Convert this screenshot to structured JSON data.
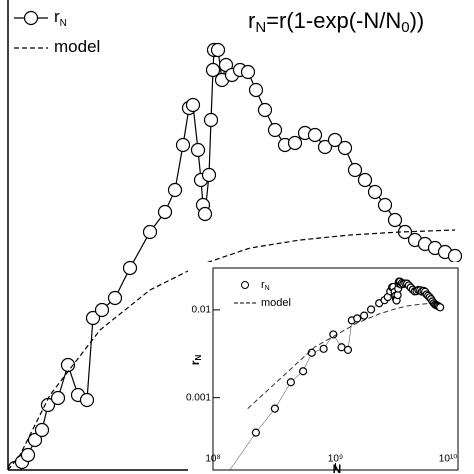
{
  "chart_data": {
    "type": "line",
    "title_parts": [
      {
        "text": "r"
      },
      {
        "text": "N",
        "sub": true
      },
      {
        "text": "=r(1-exp(-N/N"
      },
      {
        "text": "0",
        "sub": true
      },
      {
        "text": "))"
      }
    ],
    "xlim": [
      0,
      7456000000
    ],
    "ylim": [
      0,
      0.02325
    ],
    "series": [
      {
        "name": "r",
        "name_sub": "N",
        "color": "#000000",
        "marker": "circle",
        "dash": false,
        "x": [
          112000000,
          224000000,
          320000000,
          432000000,
          544000000,
          640000000,
          800000000,
          960000000,
          1120000000,
          1264000000,
          1360000000,
          1504000000,
          1712000000,
          1952000000,
          2272000000,
          2512000000,
          2672000000,
          2800000000,
          2896000000,
          2960000000,
          3040000000,
          3088000000,
          3120000000,
          3152000000,
          3216000000,
          3248000000,
          3280000000,
          3296000000,
          3360000000,
          3424000000,
          3488000000,
          3584000000,
          3712000000,
          3840000000,
          3968000000,
          4112000000,
          4272000000,
          4432000000,
          4592000000,
          4752000000,
          4912000000,
          5072000000,
          5232000000,
          5392000000,
          5552000000,
          5712000000,
          5872000000,
          6032000000,
          6192000000,
          6352000000,
          6512000000,
          6672000000,
          6832000000,
          6992000000,
          7152000000
        ],
        "values": [
          0.0001,
          0.0004,
          0.00075,
          0.0015,
          0.002,
          0.00325,
          0.0036,
          0.00525,
          0.00375,
          0.0035,
          0.0076,
          0.008,
          0.0086,
          0.0101,
          0.0119,
          0.0129,
          0.014,
          0.01625,
          0.0181,
          0.01825,
          0.016,
          0.0145,
          0.01325,
          0.0128,
          0.01475,
          0.0175,
          0.02,
          0.021,
          0.021,
          0.0195,
          0.02025,
          0.01975,
          0.02,
          0.0199,
          0.019,
          0.018,
          0.017,
          0.01625,
          0.01635,
          0.01685,
          0.01675,
          0.01615,
          0.0165,
          0.0161,
          0.015,
          0.0145,
          0.0139,
          0.01325,
          0.0125,
          0.0119,
          0.0115,
          0.0113,
          0.0111,
          0.0109,
          0.0107
        ]
      },
      {
        "name": "model",
        "color": "#000000",
        "marker": "none",
        "dash": true,
        "x": [
          0,
          192000000,
          672000000,
          1472000000,
          2272000000,
          3072000000,
          3872000000,
          4672000000,
          5472000000,
          6272000000,
          7152000000
        ],
        "values": [
          0,
          0.00075,
          0.00375,
          0.007,
          0.009,
          0.01025,
          0.0111,
          0.0115,
          0.01175,
          0.0119,
          0.012
        ]
      }
    ],
    "inset": {
      "xlog": true,
      "ylog": true,
      "xlim": [
        100000000,
        10000000000
      ],
      "ylim": [
        0.00015,
        0.03
      ],
      "xticks": [
        {
          "value": 100000000,
          "label": "10⁸"
        },
        {
          "value": 1000000000,
          "label": "10⁹"
        },
        {
          "value": 10000000000,
          "label": "10¹⁰"
        }
      ],
      "yticks": [
        0.001,
        0.01
      ],
      "xlabel": "N",
      "ylabel": "r",
      "ylabel_sub": "N"
    }
  }
}
